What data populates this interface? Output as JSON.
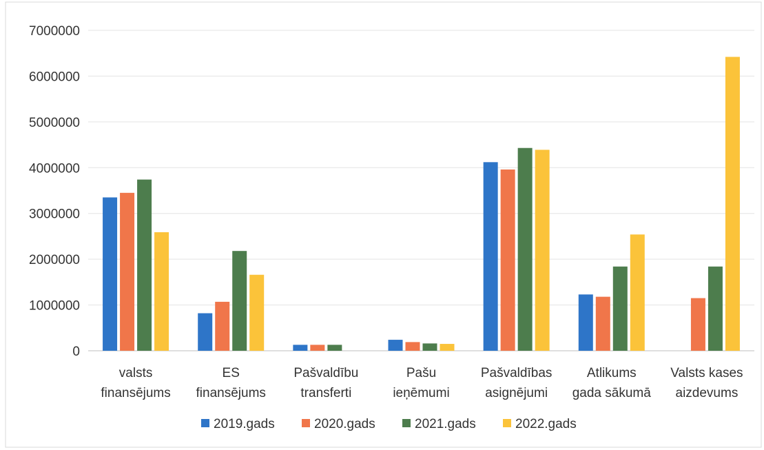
{
  "chart_data": {
    "type": "bar",
    "title": "",
    "xlabel": "",
    "ylabel": "",
    "ylim": [
      0,
      7000000
    ],
    "yticks": [
      "0",
      "1000000",
      "2000000",
      "3000000",
      "4000000",
      "5000000",
      "6000000",
      "7000000"
    ],
    "grid": true,
    "legend_position": "bottom",
    "categories": [
      [
        "valsts",
        "finansējums"
      ],
      [
        "ES",
        "finansējums"
      ],
      [
        "Pašvaldību",
        "transferti"
      ],
      [
        "Pašu",
        "ieņēmumi"
      ],
      [
        "Pašvaldības",
        "asignējumi"
      ],
      [
        "Atlikums",
        "gada sākumā"
      ],
      [
        "Valsts kases",
        "aizdevums"
      ]
    ],
    "series": [
      {
        "name": "2019.gads",
        "color": "#2e75c8",
        "values": [
          3350000,
          820000,
          130000,
          240000,
          4120000,
          1230000,
          0
        ]
      },
      {
        "name": "2020.gads",
        "color": "#f0764a",
        "values": [
          3450000,
          1070000,
          130000,
          190000,
          3960000,
          1180000,
          1150000
        ]
      },
      {
        "name": "2021.gads",
        "color": "#4d7d4d",
        "values": [
          3740000,
          2180000,
          130000,
          160000,
          4430000,
          1840000,
          1840000
        ]
      },
      {
        "name": "2022.gads",
        "color": "#fbc33a",
        "values": [
          2590000,
          1660000,
          0,
          150000,
          4390000,
          2540000,
          6420000
        ]
      }
    ]
  }
}
